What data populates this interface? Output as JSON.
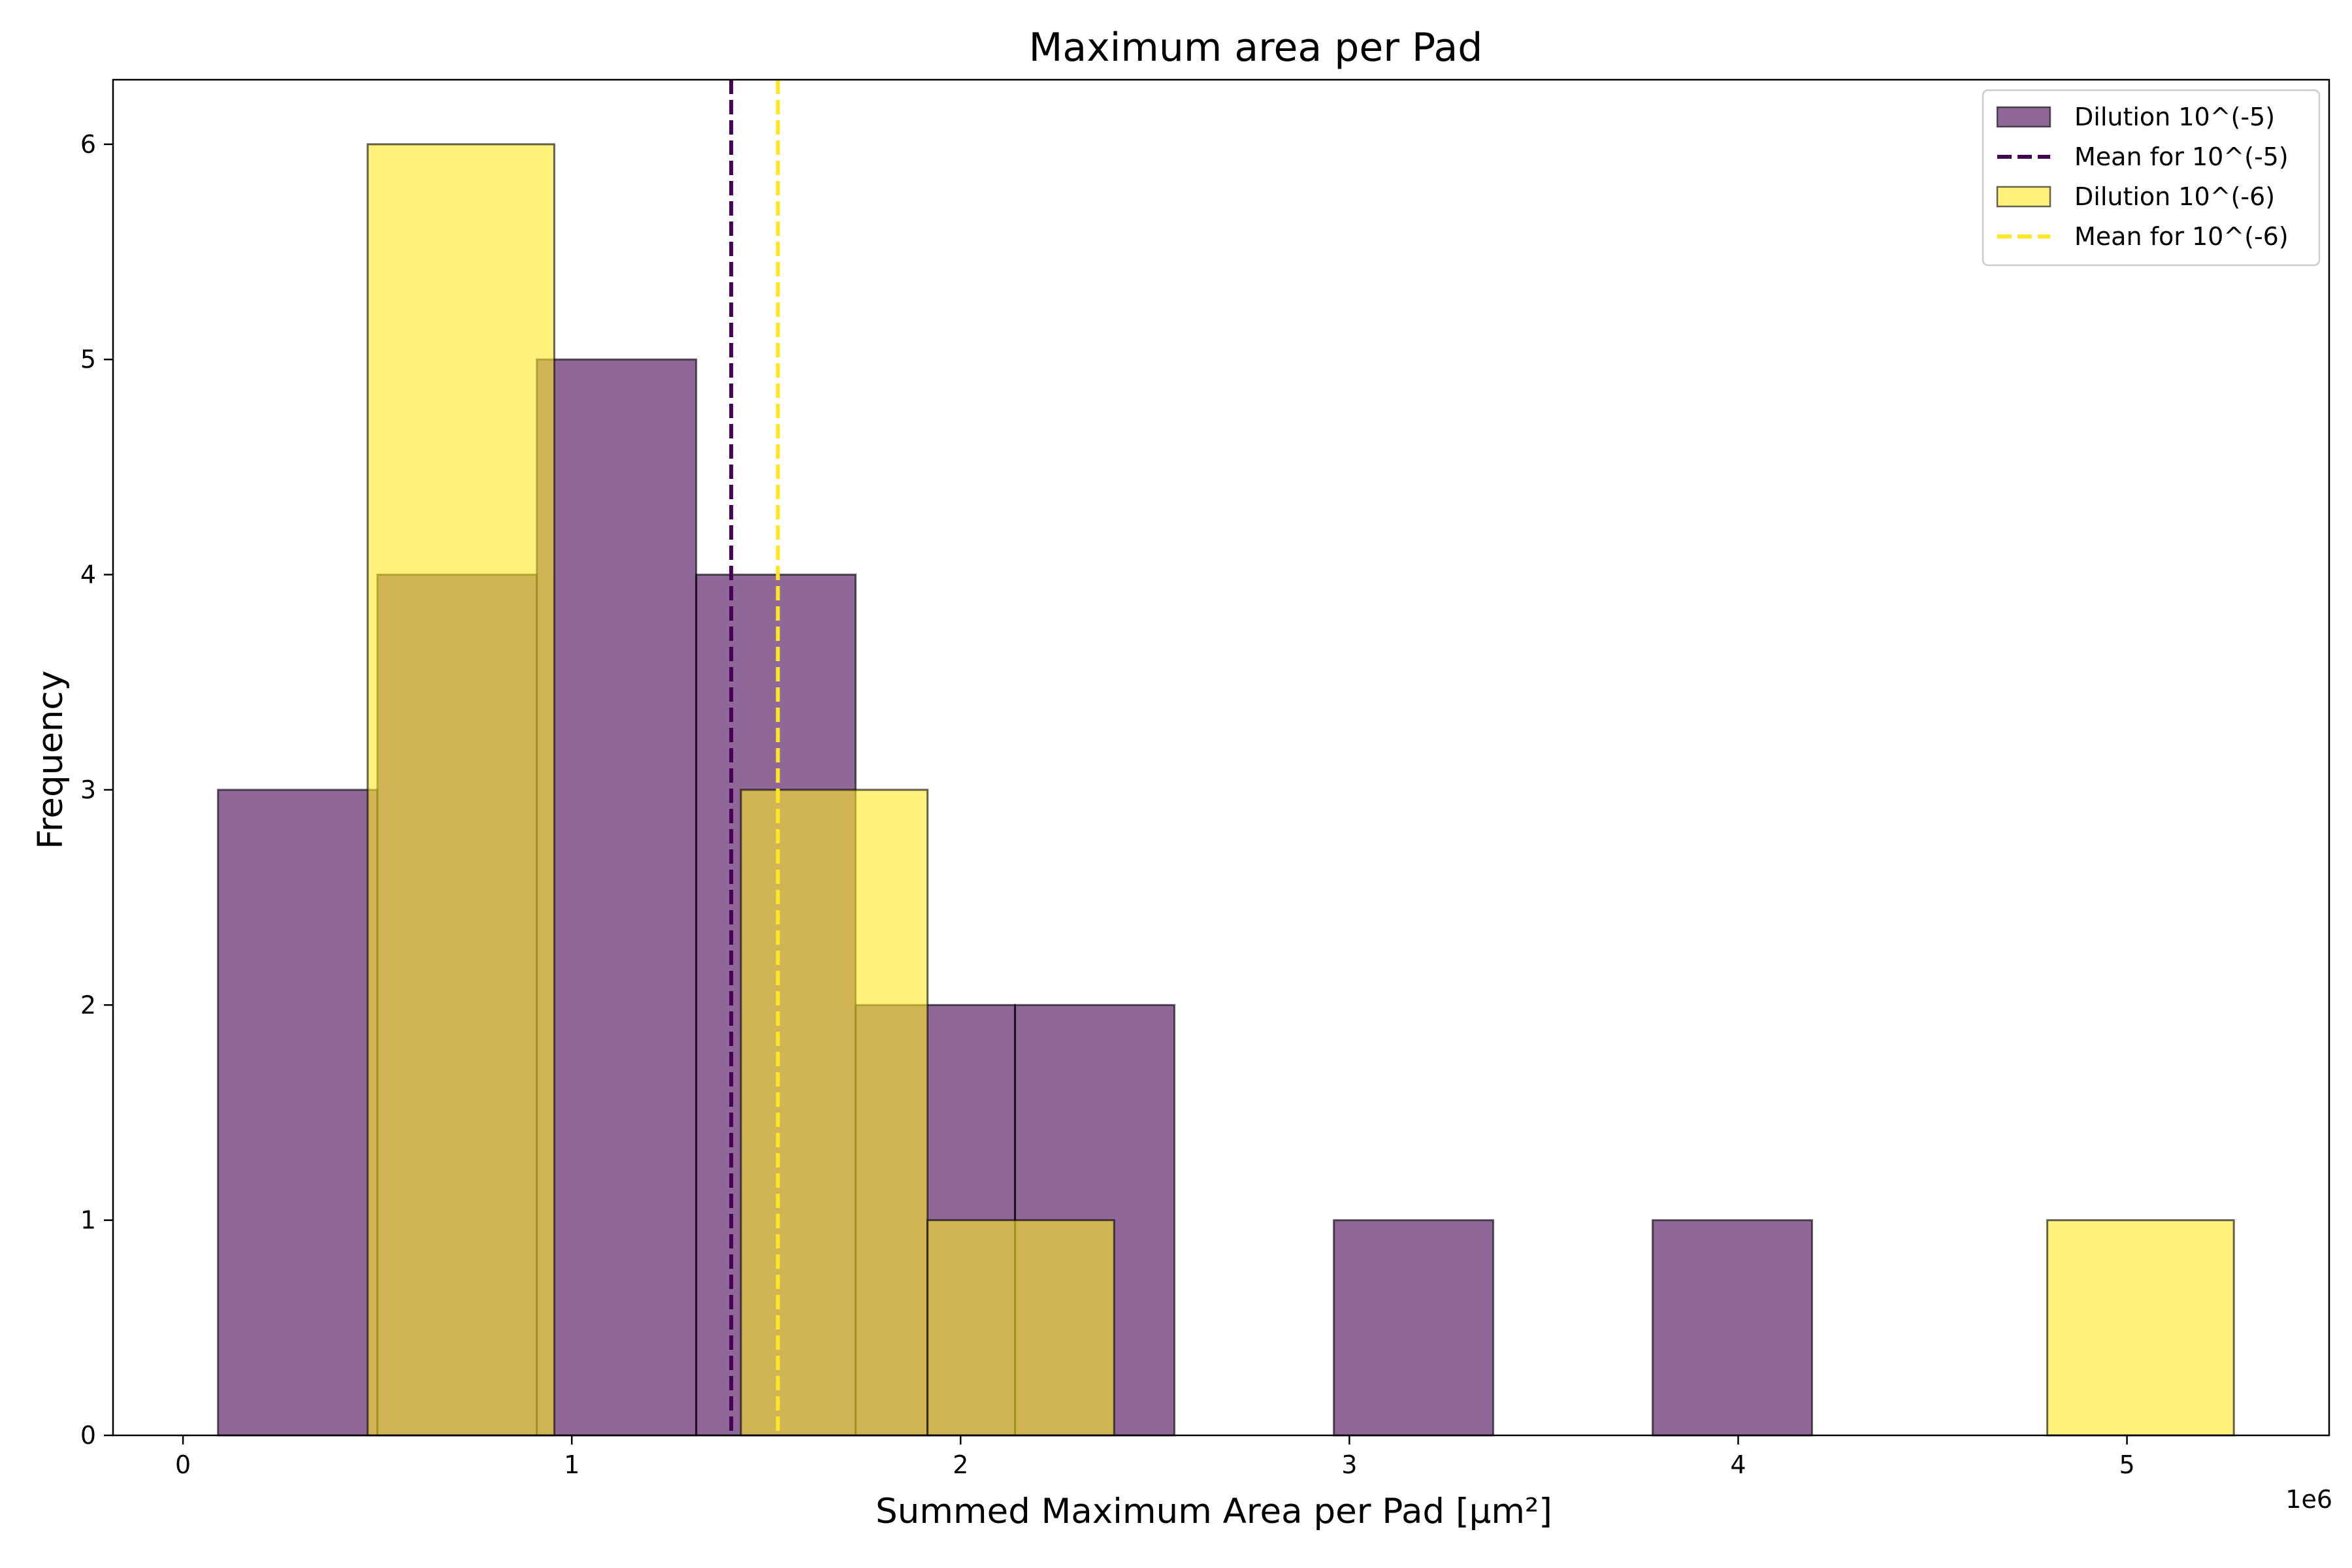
{
  "chart_data": {
    "type": "bar",
    "title": "Maximum area per Pad",
    "xlabel": "Summed Maximum Area per Pad",
    "xlabel_math": "[μm²]",
    "ylabel": "Frequency",
    "x_offset_label": "1e6",
    "xlim": [
      -0.18,
      5.52
    ],
    "ylim": [
      0,
      6.3
    ],
    "x_ticks": [
      0,
      1,
      2,
      3,
      4,
      5
    ],
    "y_ticks": [
      0,
      1,
      2,
      3,
      4,
      5,
      6
    ],
    "x_tick_labels": [
      "0",
      "1",
      "2",
      "3",
      "4",
      "5"
    ],
    "y_tick_labels": [
      "0",
      "1",
      "2",
      "3",
      "4",
      "5",
      "6"
    ],
    "legend_position": "top-right",
    "series": [
      {
        "name": "Dilution 10^(-5)",
        "color": "#440154",
        "alpha": 0.6,
        "bin_edges": [
          0.09,
          0.5,
          0.91,
          1.32,
          1.73,
          2.14,
          2.55,
          2.96,
          3.37,
          3.78,
          4.19
        ],
        "counts": [
          3,
          4,
          5,
          4,
          2,
          2,
          0,
          1,
          0,
          1
        ]
      },
      {
        "name": "Dilution 10^(-6)",
        "color": "#fde725",
        "alpha": 0.6,
        "bin_edges": [
          0.475,
          0.955,
          1.435,
          1.915,
          2.395,
          2.875,
          3.355,
          3.835,
          4.315,
          4.795,
          5.275
        ],
        "counts": [
          6,
          0,
          3,
          1,
          0,
          0,
          0,
          0,
          0,
          1
        ]
      }
    ],
    "mean_lines": [
      {
        "name": "Mean for 10^(-5)",
        "x": 1.41,
        "color": "#440154"
      },
      {
        "name": "Mean for 10^(-6)",
        "x": 1.53,
        "color": "#fde725"
      }
    ]
  }
}
